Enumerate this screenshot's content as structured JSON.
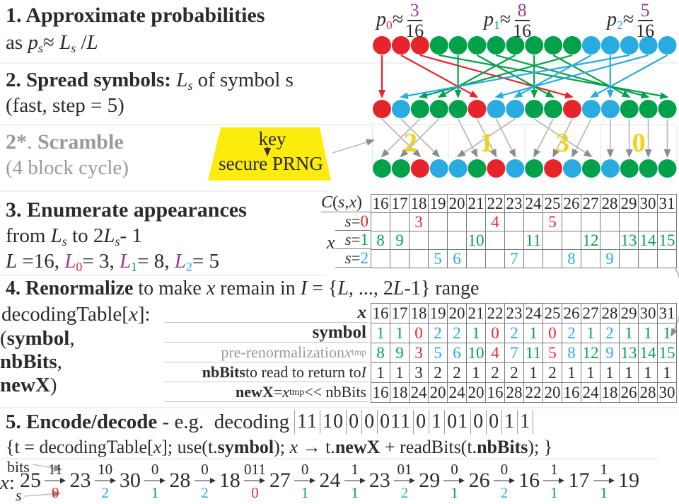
{
  "palette": {
    "c0": "#e8242b",
    "c1": "#00a14b",
    "c2": "#29abe2",
    "cp": "#993e93",
    "yellow": "#f2d117",
    "gray": "#9a9a9a",
    "trapezoid": "#fcec0d"
  },
  "sec1": {
    "l1": [
      {
        "t": "1. Approximate probabilities",
        "c": "b"
      }
    ],
    "l2": [
      {
        "t": "as "
      },
      {
        "t": "p",
        "c": "i"
      },
      {
        "t": "s",
        "c": "i sb"
      },
      {
        "t": "≈ "
      },
      {
        "t": "L",
        "c": "i"
      },
      {
        "t": "s",
        "c": "i sb"
      },
      {
        "t": " /"
      },
      {
        "t": "L",
        "c": "i"
      }
    ]
  },
  "sec2": {
    "l1": [
      {
        "t": "2. Spread symbols: ",
        "c": "b"
      },
      {
        "t": "L",
        "c": "i"
      },
      {
        "t": "s",
        "c": "i sb"
      },
      {
        "t": " of symbol s"
      }
    ],
    "l2": [
      {
        "t": "(fast, step = 5)"
      }
    ]
  },
  "scramble": {
    "l1": [
      {
        "t": "2*",
        "c": "b g"
      },
      {
        "t": ". ",
        "c": "g"
      },
      {
        "t": "Scramble",
        "c": "b g"
      }
    ],
    "l2": [
      {
        "t": "(4 block cycle)",
        "c": "g"
      }
    ],
    "key_label": "key",
    "prng_label": "secure PRNG",
    "block_labels": [
      "2",
      "1",
      "3",
      "0"
    ]
  },
  "probs": [
    {
      "pre": [
        {
          "t": "p",
          "c": "i"
        },
        {
          "t": "0",
          "c": "sb c0"
        },
        {
          "t": "≈"
        }
      ],
      "num": "3",
      "den": "16"
    },
    {
      "pre": [
        {
          "t": "p",
          "c": "i"
        },
        {
          "t": "1",
          "c": "sb c1"
        },
        {
          "t": "≈"
        }
      ],
      "num": "8",
      "den": "16"
    },
    {
      "pre": [
        {
          "t": "p",
          "c": "i"
        },
        {
          "t": "2",
          "c": "sb c2"
        },
        {
          "t": "≈"
        }
      ],
      "num": "5",
      "den": "16"
    }
  ],
  "circles": {
    "row_top": [
      "0",
      "0",
      "0",
      "1",
      "1",
      "1",
      "1",
      "1",
      "1",
      "1",
      "1",
      "2",
      "2",
      "2",
      "2",
      "2"
    ],
    "row_spread": [
      "0",
      "2",
      "1",
      "1",
      "1",
      "0",
      "2",
      "2",
      "1",
      "1",
      "0",
      "2",
      "2",
      "1",
      "1",
      "1"
    ],
    "row_scrambled": [
      "1",
      "1",
      "0",
      "2",
      "2",
      "1",
      "0",
      "2",
      "1",
      "0",
      "2",
      "1",
      "2",
      "1",
      "1",
      "1"
    ],
    "spread_to": [
      0,
      5,
      10,
      15,
      4,
      9,
      14,
      3,
      8,
      13,
      2,
      7,
      12,
      1,
      6,
      11
    ],
    "scramble_shifts": [
      2,
      1,
      3,
      0
    ]
  },
  "sec3": {
    "l1": [
      {
        "t": "3. Enumerate appearances",
        "c": "b"
      }
    ],
    "l2": [
      {
        "t": "from "
      },
      {
        "t": "L",
        "c": "i"
      },
      {
        "t": "s",
        "c": "i sb"
      },
      {
        "t": " to 2"
      },
      {
        "t": "L",
        "c": "i"
      },
      {
        "t": "s",
        "c": "i sb"
      },
      {
        "t": "- 1"
      }
    ],
    "l3": [
      {
        "t": "L",
        "c": "i"
      },
      {
        "t": " =16, "
      },
      {
        "t": "L",
        "c": "i cp"
      },
      {
        "t": "0",
        "c": "sb c0"
      },
      {
        "t": "= 3, "
      },
      {
        "t": "L",
        "c": "i cp"
      },
      {
        "t": "1",
        "c": "sb c1"
      },
      {
        "t": "= 8, "
      },
      {
        "t": "L",
        "c": "i cp"
      },
      {
        "t": "2",
        "c": "sb c2"
      },
      {
        "t": "= 5"
      }
    ]
  },
  "enum_table": {
    "title": [
      {
        "t": "C",
        "c": "i"
      },
      {
        "t": "("
      },
      {
        "t": "s",
        "c": "i"
      },
      {
        "t": ","
      },
      {
        "t": "x",
        "c": "i"
      },
      {
        "t": ")"
      }
    ],
    "x_label": [
      {
        "t": "x",
        "c": "i"
      }
    ],
    "cols": [
      "16",
      "17",
      "18",
      "19",
      "20",
      "21",
      "22",
      "23",
      "24",
      "25",
      "26",
      "27",
      "28",
      "29",
      "30",
      "31"
    ],
    "rows": [
      {
        "label": [
          {
            "t": "s",
            "c": "i"
          },
          {
            "t": "="
          },
          {
            "t": "0",
            "c": "c0"
          }
        ],
        "cls": "c0",
        "values": [
          "",
          "",
          "3",
          "",
          "",
          "",
          "4",
          "",
          "",
          "5",
          "",
          "",
          "",
          "",
          "",
          ""
        ]
      },
      {
        "label": [
          {
            "t": "s",
            "c": "i"
          },
          {
            "t": "="
          },
          {
            "t": "1",
            "c": "c1"
          }
        ],
        "cls": "c1",
        "values": [
          "8",
          "9",
          "",
          "",
          "",
          "10",
          "",
          "",
          "11",
          "",
          "",
          "12",
          "",
          "13",
          "14",
          "15"
        ]
      },
      {
        "label": [
          {
            "t": "s",
            "c": "i"
          },
          {
            "t": "="
          },
          {
            "t": "2",
            "c": "c2"
          }
        ],
        "cls": "c2",
        "values": [
          "",
          "",
          "",
          "5",
          "6",
          "",
          "",
          "7",
          "",
          "",
          "8",
          "",
          "9",
          "",
          "",
          ""
        ]
      }
    ]
  },
  "sec4": {
    "l1": [
      {
        "t": "4. Renormalize",
        "c": "b"
      },
      {
        "t": " to make "
      },
      {
        "t": "x",
        "c": "i"
      },
      {
        "t": " remain in "
      },
      {
        "t": "I",
        "c": "i"
      },
      {
        "t": " = {"
      },
      {
        "t": "L",
        "c": "i"
      },
      {
        "t": ", ..., 2"
      },
      {
        "t": "L",
        "c": "i"
      },
      {
        "t": "-1} range"
      }
    ],
    "l2": [
      {
        "t": "decodingTable["
      },
      {
        "t": "x",
        "c": "i"
      },
      {
        "t": "]:"
      }
    ],
    "l3": [
      {
        "t": "("
      },
      {
        "t": "symbol",
        "c": "b"
      },
      {
        "t": ","
      }
    ],
    "l4": [
      {
        "t": "nbBits",
        "c": "b"
      },
      {
        "t": ","
      }
    ],
    "l5": [
      {
        "t": "newX",
        "c": "b"
      },
      {
        "t": ")"
      }
    ]
  },
  "renorm_table": {
    "cols": [
      "16",
      "17",
      "18",
      "19",
      "20",
      "21",
      "22",
      "23",
      "24",
      "25",
      "26",
      "27",
      "28",
      "29",
      "30",
      "31"
    ],
    "labels": {
      "x": [
        {
          "t": "x",
          "c": "b i"
        }
      ],
      "symbol": [
        {
          "t": "symbol",
          "c": "b"
        }
      ],
      "pre": [
        {
          "t": "pre-renormalization ",
          "c": "g"
        },
        {
          "t": "x",
          "c": "g i"
        },
        {
          "t": "tmp",
          "c": "g sb"
        }
      ],
      "nbbits": [
        {
          "t": "nbBits",
          "c": "b"
        },
        {
          "t": " to read to return to "
        },
        {
          "t": "I",
          "c": "i"
        }
      ],
      "newx": [
        {
          "t": "newX",
          "c": "b"
        },
        {
          "t": " = "
        },
        {
          "t": "x",
          "c": "i"
        },
        {
          "t": "tmp",
          "c": "sb"
        },
        {
          "t": " << nbBits"
        }
      ]
    },
    "symbol": [
      "1",
      "1",
      "0",
      "2",
      "2",
      "1",
      "0",
      "2",
      "1",
      "0",
      "2",
      "1",
      "2",
      "1",
      "1",
      "1"
    ],
    "xtmp": [
      "8",
      "9",
      "3",
      "5",
      "6",
      "10",
      "4",
      "7",
      "11",
      "5",
      "8",
      "12",
      "9",
      "13",
      "14",
      "15"
    ],
    "nbbits": [
      "1",
      "1",
      "3",
      "2",
      "2",
      "1",
      "2",
      "2",
      "1",
      "2",
      "1",
      "1",
      "1",
      "1",
      "1",
      "1"
    ],
    "newx": [
      "16",
      "18",
      "24",
      "20",
      "24",
      "20",
      "16",
      "28",
      "22",
      "20",
      "16",
      "24",
      "18",
      "26",
      "28",
      "30"
    ]
  },
  "sec5": {
    "l1": [
      {
        "t": "5. Encode/decode",
        "c": "b"
      },
      {
        "t": " - e.g.  decoding"
      }
    ],
    "bit_groups": [
      "11",
      "10",
      "0",
      "0",
      "011",
      "0",
      "1",
      "01",
      "0",
      "0",
      "1",
      "1"
    ],
    "l2": [
      {
        "t": "{t = decodingTable["
      },
      {
        "t": "x",
        "c": "i"
      },
      {
        "t": "]; use(t."
      },
      {
        "t": "symbol",
        "c": "b"
      },
      {
        "t": "); "
      },
      {
        "t": "x",
        "c": "i"
      },
      {
        "t": " → t."
      },
      {
        "t": "newX",
        "c": "b"
      },
      {
        "t": " + readBits(t."
      },
      {
        "t": "nbBits",
        "c": "b"
      },
      {
        "t": "); }"
      }
    ]
  },
  "decode": {
    "bits_label": "bits",
    "x_label": [
      {
        "t": "x",
        "c": "i"
      },
      {
        "t": ":"
      }
    ],
    "s_label": [
      {
        "t": "s",
        "c": "i"
      }
    ],
    "states": [
      "25",
      "23",
      "30",
      "28",
      "18",
      "27",
      "24",
      "23",
      "29",
      "26",
      "16",
      "17",
      "19"
    ],
    "steps": [
      {
        "bits": "11",
        "sym": "0"
      },
      {
        "bits": "10",
        "sym": "2"
      },
      {
        "bits": "0",
        "sym": "1"
      },
      {
        "bits": "0",
        "sym": "2"
      },
      {
        "bits": "011",
        "sym": "0"
      },
      {
        "bits": "0",
        "sym": "1"
      },
      {
        "bits": "1",
        "sym": "1"
      },
      {
        "bits": "01",
        "sym": "2"
      },
      {
        "bits": "0",
        "sym": "1"
      },
      {
        "bits": "0",
        "sym": "2"
      },
      {
        "bits": "1",
        "sym": "1"
      },
      {
        "bits": "1",
        "sym": "1"
      }
    ]
  }
}
